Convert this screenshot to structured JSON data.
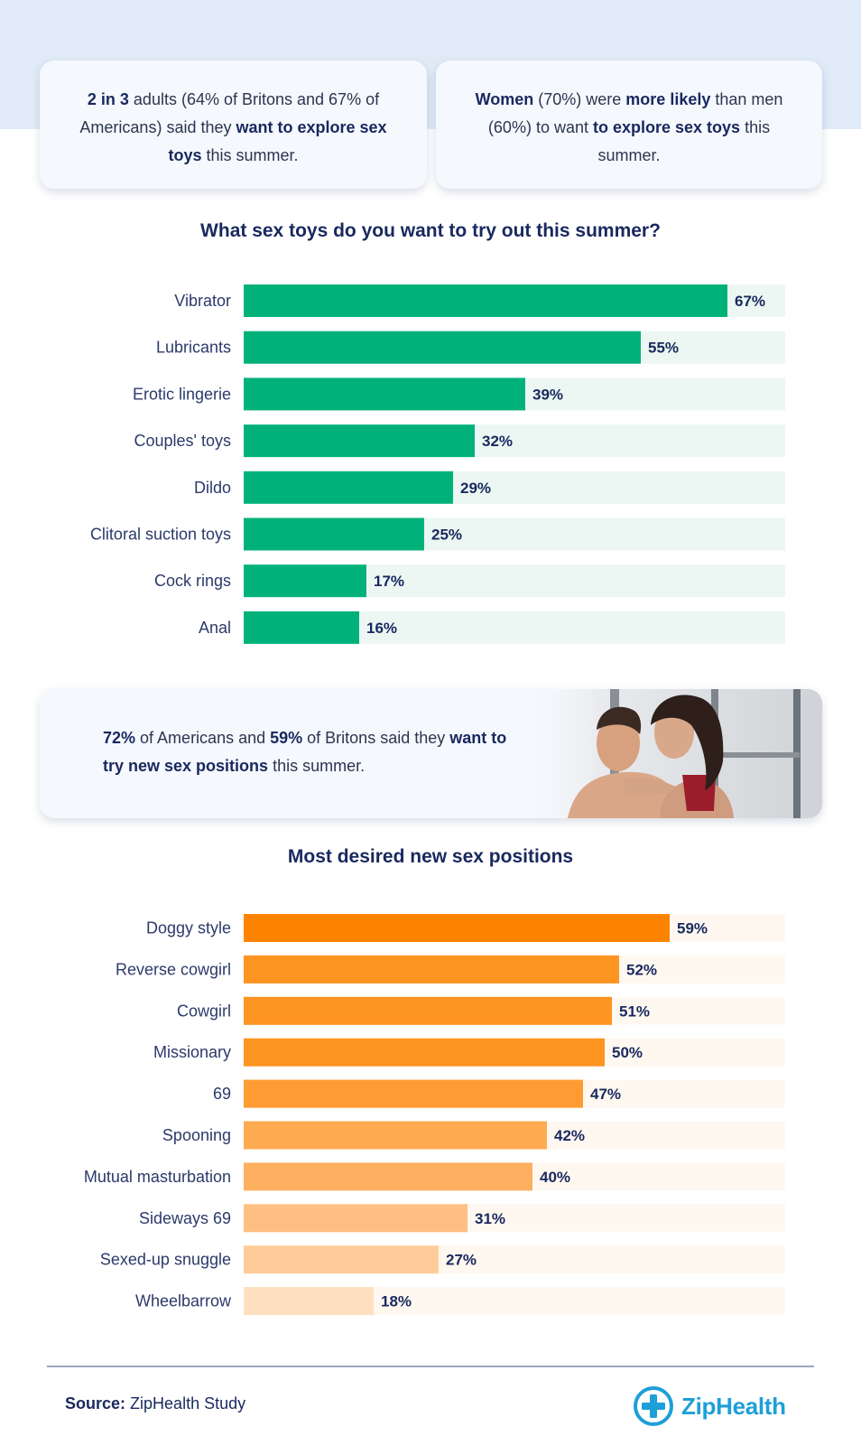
{
  "stats": {
    "card1": [
      {
        "t": "2 in 3",
        "b": true
      },
      {
        "t": " adults (64% of Britons and 67% of Americans) said they ",
        "b": false
      },
      {
        "t": "want to explore sex toys",
        "b": true
      },
      {
        "t": " this summer.",
        "b": false
      }
    ],
    "card2": [
      {
        "t": "Women",
        "b": true
      },
      {
        "t": " (70%) were ",
        "b": false
      },
      {
        "t": "more likely",
        "b": true
      },
      {
        "t": " than men (60%) to want ",
        "b": false
      },
      {
        "t": "to explore sex toys",
        "b": true
      },
      {
        "t": " this summer.",
        "b": false
      }
    ],
    "card3": [
      {
        "t": "72%",
        "b": true
      },
      {
        "t": " of Americans and ",
        "b": false
      },
      {
        "t": "59%",
        "b": true
      },
      {
        "t": " of Britons said they ",
        "b": false
      },
      {
        "t": "want to try new sex positions",
        "b": true
      },
      {
        "t": " this summer.",
        "b": false
      }
    ]
  },
  "chart_data": [
    {
      "type": "bar",
      "orientation": "horizontal",
      "title": "What sex toys do you want to try out this summer?",
      "categories": [
        "Vibrator",
        "Lubricants",
        "Erotic lingerie",
        "Couples' toys",
        "Dildo",
        "Clitoral suction toys",
        "Cock rings",
        "Anal"
      ],
      "values": [
        67,
        55,
        39,
        32,
        29,
        25,
        17,
        16
      ],
      "value_labels": [
        "67%",
        "55%",
        "39%",
        "32%",
        "29%",
        "25%",
        "17%",
        "16%"
      ],
      "unit": "%",
      "xlim": [
        0,
        75
      ],
      "grid": false,
      "bar_color": "#00b27a",
      "track_color": "#ecf7f3"
    },
    {
      "type": "bar",
      "orientation": "horizontal",
      "title": "Most desired new sex positions",
      "categories": [
        "Doggy style",
        "Reverse cowgirl",
        "Cowgirl",
        "Missionary",
        "69",
        "Spooning",
        "Mutual masturbation",
        "Sideways 69",
        "Sexed-up snuggle",
        "Wheelbarrow"
      ],
      "values": [
        59,
        52,
        51,
        50,
        47,
        42,
        40,
        31,
        27,
        18
      ],
      "value_labels": [
        "59%",
        "52%",
        "51%",
        "50%",
        "47%",
        "42%",
        "40%",
        "31%",
        "27%",
        "18%"
      ],
      "unit": "%",
      "xlim": [
        0,
        75
      ],
      "grid": false,
      "bar_colors": [
        "#fd8300",
        "#fe9421",
        "#fe9421",
        "#fe9421",
        "#fe9c33",
        "#feaa4f",
        "#feb061",
        "#fec082",
        "#fecc98",
        "#fee0c0"
      ],
      "track_color": "#fff8f1"
    }
  ],
  "footer": {
    "source_label": "Source:",
    "source_value": "ZipHealth Study",
    "logo_text": "ZipHealth",
    "logo_icon": "medical-cross-icon",
    "logo_color": "#1e9fd8"
  }
}
